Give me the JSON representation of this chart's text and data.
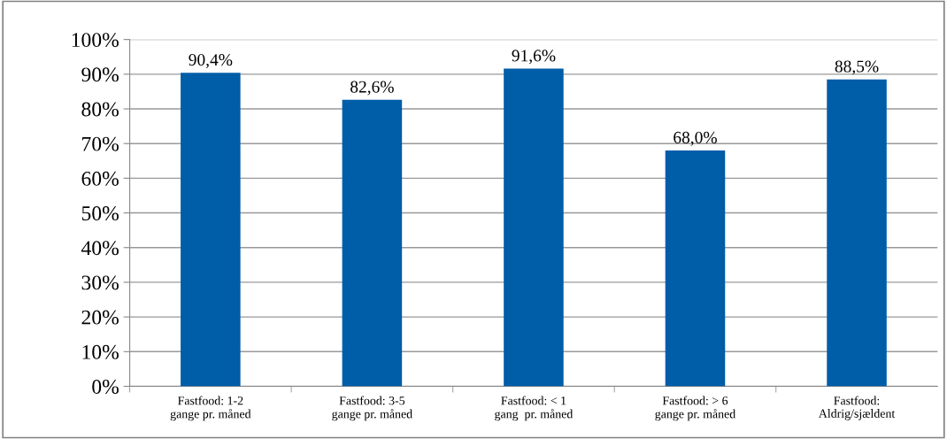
{
  "chart_data": {
    "type": "bar",
    "categories": [
      "Fastfood: 1-2\ngange pr. måned",
      "Fastfood: 3-5\ngange pr. måned",
      "Fastfood: < 1\ngang  pr. måned",
      "Fastfood: > 6\ngange pr. måned",
      "Fastfood:\nAldrig/sjældent"
    ],
    "values": [
      90.4,
      82.6,
      91.6,
      68.0,
      88.5
    ],
    "value_labels": [
      "90,4%",
      "82,6%",
      "91,6%",
      "68,0%",
      "88,5%"
    ],
    "color": "#005da8",
    "ylim": [
      0,
      100
    ],
    "yticks": [
      {
        "value": 0,
        "label": "0%"
      },
      {
        "value": 10,
        "label": "10%"
      },
      {
        "value": 20,
        "label": "20%"
      },
      {
        "value": 30,
        "label": "30%"
      },
      {
        "value": 40,
        "label": "40%"
      },
      {
        "value": 50,
        "label": "50%"
      },
      {
        "value": 60,
        "label": "60%"
      },
      {
        "value": 70,
        "label": "70%"
      },
      {
        "value": 80,
        "label": "80%"
      },
      {
        "value": 90,
        "label": "90%"
      },
      {
        "value": 100,
        "label": "100%"
      }
    ],
    "grid": "y",
    "legend": false
  }
}
